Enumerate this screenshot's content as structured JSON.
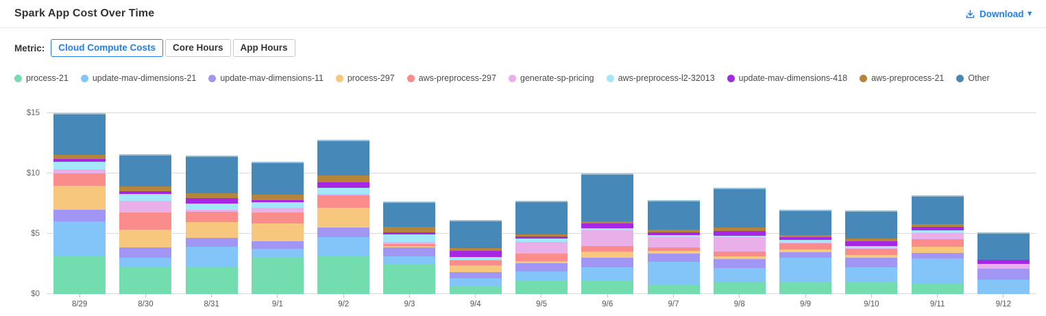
{
  "header": {
    "title": "Spark App Cost Over Time",
    "download_label": "Download",
    "download_icon": "download-tray-arrow",
    "caret_icon": "chevron-down",
    "accent_color": "#1E80F0"
  },
  "metric_bar": {
    "label": "Metric:",
    "options": [
      {
        "label": "Cloud Compute Costs",
        "selected": true
      },
      {
        "label": "Core Hours",
        "selected": false
      },
      {
        "label": "App Hours",
        "selected": false
      }
    ]
  },
  "colors": {
    "accent": "#1E80F0",
    "divider": "#E4E4E4",
    "grid_line": "#DADADA",
    "axis_text": "#666666",
    "x_label_text": "#555555",
    "legend_text": "#4A4A4A",
    "title_text": "#333333"
  },
  "chart_data": {
    "type": "bar",
    "stacked": true,
    "title": "Spark App Cost Over Time",
    "xlabel": "",
    "ylabel": "",
    "ylim": [
      0,
      15
    ],
    "yticks": [
      0,
      5,
      10,
      15
    ],
    "ytick_labels": [
      "$0",
      "$5",
      "$10",
      "$15"
    ],
    "grid": true,
    "legend_position": "top",
    "categories": [
      "8/29",
      "8/30",
      "8/31",
      "9/1",
      "9/2",
      "9/3",
      "9/4",
      "9/5",
      "9/6",
      "9/7",
      "9/8",
      "9/9",
      "9/10",
      "9/11",
      "9/12"
    ],
    "series": [
      {
        "name": "process-21",
        "color": "#74DDB0",
        "values": [
          3.1,
          2.25,
          2.25,
          3.0,
          3.2,
          2.45,
          0.7,
          1.1,
          1.1,
          0.75,
          0.95,
          1.05,
          1.0,
          0.85,
          0
        ]
      },
      {
        "name": "update-mav-dimensions-21",
        "color": "#83C5F9",
        "values": [
          2.9,
          0.75,
          1.65,
          0.75,
          1.5,
          0.7,
          0.6,
          0.75,
          1.1,
          1.9,
          1.2,
          1.95,
          1.2,
          2.1,
          1.2
        ]
      },
      {
        "name": "update-mav-dimensions-11",
        "color": "#A296F5",
        "values": [
          1.0,
          0.85,
          0.75,
          0.65,
          0.8,
          0.7,
          0.5,
          0.7,
          0.8,
          0.7,
          0.75,
          0.45,
          0.8,
          0.45,
          0.9
        ]
      },
      {
        "name": "process-297",
        "color": "#F7C77E",
        "values": [
          2.0,
          1.5,
          1.3,
          1.45,
          1.65,
          0.15,
          0.6,
          0.2,
          0.55,
          0.25,
          0.2,
          0.25,
          0.25,
          0.5,
          0
        ]
      },
      {
        "name": "aws-preprocess-297",
        "color": "#FA8D8B",
        "values": [
          1.0,
          1.4,
          0.85,
          0.9,
          1.05,
          0.15,
          0.4,
          0.6,
          0.45,
          0.25,
          0.45,
          0.5,
          0.5,
          0.65,
          0
        ]
      },
      {
        "name": "generate-sp-pricing",
        "color": "#E8AFE8",
        "values": [
          0.35,
          1.0,
          0.2,
          0.4,
          0.1,
          0.2,
          0.05,
          0.95,
          1.3,
          0.85,
          1.15,
          0.05,
          0.05,
          0.5,
          0.4
        ]
      },
      {
        "name": "aws-preprocess-l2-32013",
        "color": "#A2E7FA",
        "values": [
          0.6,
          0.55,
          0.5,
          0.45,
          0.5,
          0.6,
          0.25,
          0.3,
          0.15,
          0.2,
          0.15,
          0.25,
          0.2,
          0.25,
          0
        ]
      },
      {
        "name": "update-mav-dimensions-418",
        "color": "#A628E5",
        "values": [
          0.25,
          0.2,
          0.45,
          0.2,
          0.45,
          0.15,
          0.5,
          0.15,
          0.4,
          0.2,
          0.4,
          0.2,
          0.4,
          0.25,
          0.35
        ]
      },
      {
        "name": "aws-preprocess-21",
        "color": "#B5853B",
        "values": [
          0.35,
          0.45,
          0.4,
          0.45,
          0.6,
          0.5,
          0.2,
          0.2,
          0.2,
          0.25,
          0.25,
          0.2,
          0.2,
          0.25,
          0
        ]
      },
      {
        "name": "Other",
        "color": "#4689B8",
        "values": [
          3.45,
          2.65,
          3.15,
          2.7,
          2.95,
          2.1,
          2.35,
          2.8,
          3.95,
          2.45,
          3.3,
          2.1,
          2.35,
          2.4,
          2.25
        ]
      }
    ]
  }
}
